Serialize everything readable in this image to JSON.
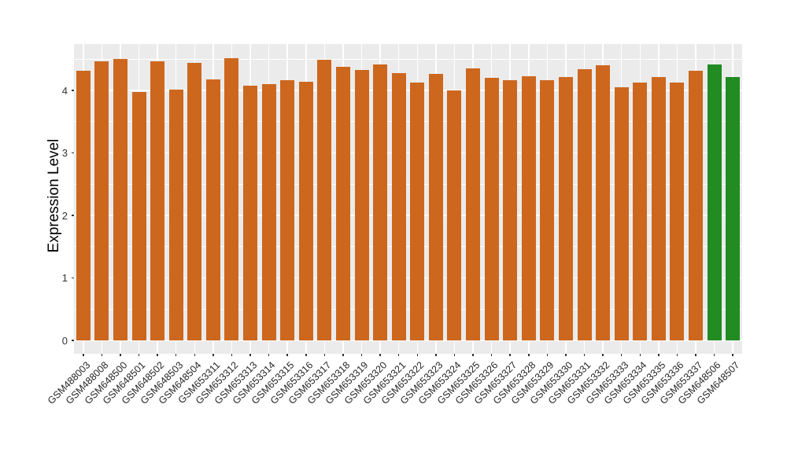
{
  "figure": {
    "colors": {
      "bar_default": "#CD671E",
      "bar_highlight": "#228B22",
      "panel_background": "#EBEBEB",
      "gridline": "#FFFFFF",
      "tick_mark": "#333333",
      "tick_text": "#333333",
      "axis_title_text": "#000000"
    }
  },
  "chart_data": {
    "type": "bar",
    "title": "",
    "xlabel": "",
    "ylabel": "Expression Level",
    "ylim": [
      -0.22,
      4.74
    ],
    "y_major_ticks": [
      0,
      1,
      2,
      3,
      4
    ],
    "y_minor_ticks": [
      0.5,
      1.5,
      2.5,
      3.5,
      4.5
    ],
    "y_tick_labels": [
      "0",
      "1",
      "2",
      "3",
      "4"
    ],
    "grid": "on",
    "legend_position": "none",
    "x_tick_rotation_deg": 45,
    "categories": [
      "GSM488003",
      "GSM488008",
      "GSM648500",
      "GSM648501",
      "GSM648502",
      "GSM648503",
      "GSM648504",
      "GSM653311",
      "GSM653312",
      "GSM653313",
      "GSM653314",
      "GSM653315",
      "GSM653316",
      "GSM653317",
      "GSM653318",
      "GSM653319",
      "GSM653320",
      "GSM653321",
      "GSM653322",
      "GSM653323",
      "GSM653324",
      "GSM653325",
      "GSM653326",
      "GSM653327",
      "GSM653328",
      "GSM653329",
      "GSM653330",
      "GSM653331",
      "GSM653332",
      "GSM653333",
      "GSM653334",
      "GSM653335",
      "GSM653336",
      "GSM653337",
      "GSM648506",
      "GSM648507"
    ],
    "values": [
      4.32,
      4.47,
      4.5,
      3.97,
      4.47,
      4.01,
      4.44,
      4.17,
      4.51,
      4.07,
      4.1,
      4.16,
      4.14,
      4.49,
      4.38,
      4.33,
      4.41,
      4.28,
      4.12,
      4.27,
      4.0,
      4.35,
      4.2,
      4.16,
      4.23,
      4.16,
      4.22,
      4.34,
      4.4,
      4.05,
      4.12,
      4.22,
      4.13,
      4.32,
      4.42,
      4.21
    ],
    "highlighted_categories": [
      "GSM648506",
      "GSM648507"
    ]
  }
}
